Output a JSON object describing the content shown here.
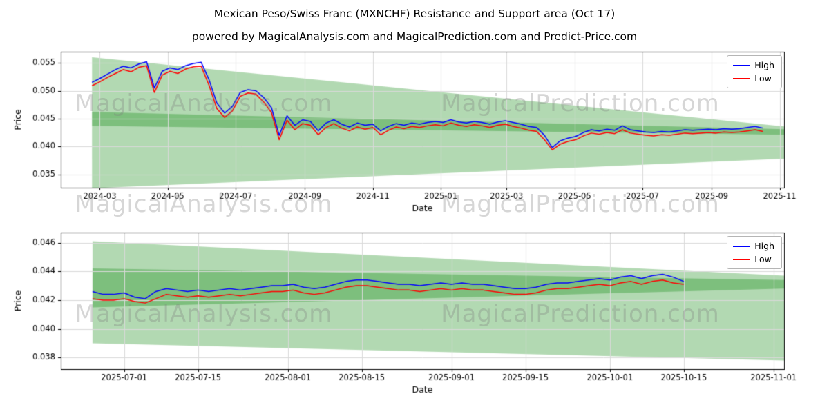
{
  "figure": {
    "title": "Mexican Peso/Swiss Franc (MXNCHF) Resistance and Support area (Oct 17)",
    "subtitle": "powered by MagicalAnalysis.com and MagicalPrediction.com and Predict-Price.com"
  },
  "watermarks": {
    "analysis": "MagicalAnalysis.com",
    "prediction": "MagicalPrediction.com"
  },
  "legend": {
    "items": [
      {
        "label": "High",
        "color": "#0000ff"
      },
      {
        "label": "Low",
        "color": "#ff0000"
      }
    ]
  },
  "colors": {
    "high_line": "#0000ff",
    "low_line": "#ff0000",
    "band_green": "#008000",
    "background": "#ffffff"
  },
  "chart_data": [
    {
      "type": "line",
      "xlabel": "Date",
      "ylabel": "Price",
      "grid": true,
      "legend_position": "upper right",
      "x_unit": "days since 2024-02-23",
      "xlim": [
        -28,
        621
      ],
      "ylim": [
        0.0326,
        0.057
      ],
      "yticks": [
        0.035,
        0.04,
        0.045,
        0.05,
        0.055
      ],
      "ytick_labels": [
        "0.035",
        "0.040",
        "0.045",
        "0.050",
        "0.055"
      ],
      "xticks": [
        {
          "pos": 7,
          "label": "2024-03"
        },
        {
          "pos": 68,
          "label": "2024-05"
        },
        {
          "pos": 129,
          "label": "2024-07"
        },
        {
          "pos": 191,
          "label": "2024-09"
        },
        {
          "pos": 252,
          "label": "2024-11"
        },
        {
          "pos": 313,
          "label": "2025-01"
        },
        {
          "pos": 372,
          "label": "2025-03"
        },
        {
          "pos": 433,
          "label": "2025-05"
        },
        {
          "pos": 494,
          "label": "2025-07"
        },
        {
          "pos": 556,
          "label": "2025-09"
        },
        {
          "pos": 617,
          "label": "2025-11"
        }
      ],
      "series": [
        {
          "name": "High",
          "color": "#0000ff",
          "x0": 0,
          "dx": 7,
          "value_scale": 0.0001,
          "values": [
            515,
            522,
            530,
            538,
            544,
            541,
            548,
            552,
            505,
            535,
            541,
            538,
            545,
            549,
            551,
            520,
            478,
            460,
            472,
            497,
            502,
            500,
            488,
            470,
            420,
            455,
            438,
            448,
            445,
            428,
            442,
            448,
            440,
            435,
            442,
            438,
            440,
            428,
            436,
            441,
            438,
            442,
            440,
            443,
            445,
            443,
            448,
            444,
            442,
            445,
            443,
            440,
            444,
            446,
            443,
            440,
            436,
            434,
            420,
            398,
            410,
            415,
            418,
            425,
            430,
            428,
            431,
            429,
            437,
            430,
            428,
            426,
            425,
            427,
            426,
            428,
            430,
            429,
            430,
            431,
            430,
            432,
            431,
            432,
            434,
            436,
            433
          ]
        },
        {
          "name": "Low",
          "color": "#ff0000",
          "x0": 0,
          "dx": 7,
          "value_scale": 0.0001,
          "values": [
            509,
            516,
            524,
            531,
            538,
            534,
            542,
            545,
            497,
            528,
            535,
            531,
            539,
            543,
            544,
            510,
            468,
            452,
            464,
            490,
            496,
            494,
            480,
            461,
            412,
            447,
            430,
            441,
            438,
            421,
            434,
            441,
            433,
            428,
            435,
            431,
            434,
            421,
            429,
            435,
            432,
            436,
            434,
            437,
            439,
            437,
            442,
            438,
            436,
            439,
            437,
            434,
            438,
            440,
            436,
            433,
            429,
            427,
            412,
            394,
            404,
            409,
            412,
            419,
            424,
            422,
            425,
            423,
            430,
            424,
            422,
            420,
            419,
            421,
            420,
            422,
            424,
            423,
            424,
            425,
            424,
            426,
            425,
            426,
            428,
            430,
            427
          ]
        }
      ],
      "bands": [
        {
          "name": "resistance-area",
          "color": "#008000",
          "alpha": 0.3,
          "x": [
            0,
            621
          ],
          "top": [
            0.056,
            0.0436
          ],
          "bottom": [
            0.0437,
            0.0421
          ]
        },
        {
          "name": "support-area",
          "color": "#008000",
          "alpha": 0.3,
          "x": [
            0,
            621
          ],
          "top": [
            0.0462,
            0.0431
          ],
          "bottom": [
            0.0325,
            0.0378
          ]
        }
      ]
    },
    {
      "type": "line",
      "xlabel": "Date",
      "ylabel": "Price",
      "grid": true,
      "legend_position": "upper right",
      "x_unit": "days since 2025-06-25",
      "xlim": [
        -6,
        131
      ],
      "ylim": [
        0.0372,
        0.0467
      ],
      "yticks": [
        0.038,
        0.04,
        0.042,
        0.044,
        0.046
      ],
      "ytick_labels": [
        "0.038",
        "0.040",
        "0.042",
        "0.044",
        "0.046"
      ],
      "xticks": [
        {
          "pos": 6,
          "label": "2025-07-01"
        },
        {
          "pos": 20,
          "label": "2025-07-15"
        },
        {
          "pos": 37,
          "label": "2025-08-01"
        },
        {
          "pos": 51,
          "label": "2025-08-15"
        },
        {
          "pos": 68,
          "label": "2025-09-01"
        },
        {
          "pos": 82,
          "label": "2025-09-15"
        },
        {
          "pos": 98,
          "label": "2025-10-01"
        },
        {
          "pos": 112,
          "label": "2025-10-15"
        },
        {
          "pos": 129,
          "label": "2025-11-01"
        }
      ],
      "series": [
        {
          "name": "High",
          "color": "#0000ff",
          "x0": 0,
          "dx": 2,
          "value_scale": 0.0001,
          "values": [
            426,
            424,
            424,
            425,
            422,
            421,
            426,
            428,
            427,
            426,
            427,
            426,
            427,
            428,
            427,
            428,
            429,
            430,
            430,
            431,
            429,
            428,
            429,
            431,
            433,
            434,
            434,
            433,
            432,
            431,
            431,
            430,
            431,
            432,
            431,
            432,
            431,
            431,
            430,
            429,
            428,
            428,
            429,
            431,
            432,
            432,
            433,
            434,
            435,
            434,
            436,
            437,
            435,
            437,
            438,
            436,
            433
          ]
        },
        {
          "name": "Low",
          "color": "#ff0000",
          "x0": 0,
          "dx": 2,
          "value_scale": 0.0001,
          "values": [
            421,
            420,
            420,
            421,
            419,
            418,
            421,
            424,
            423,
            422,
            423,
            422,
            423,
            424,
            423,
            424,
            425,
            426,
            426,
            427,
            425,
            424,
            425,
            427,
            429,
            430,
            430,
            429,
            428,
            427,
            427,
            426,
            427,
            428,
            427,
            428,
            427,
            427,
            426,
            425,
            424,
            424,
            425,
            427,
            428,
            428,
            429,
            430,
            431,
            430,
            432,
            433,
            431,
            433,
            434,
            432,
            431
          ]
        }
      ],
      "bands": [
        {
          "name": "resistance-area",
          "color": "#008000",
          "alpha": 0.3,
          "x": [
            0,
            131
          ],
          "top": [
            0.0461,
            0.0437
          ],
          "bottom": [
            0.0415,
            0.0428
          ]
        },
        {
          "name": "support-area",
          "color": "#008000",
          "alpha": 0.3,
          "x": [
            0,
            131
          ],
          "top": [
            0.0442,
            0.0434
          ],
          "bottom": [
            0.039,
            0.0378
          ]
        }
      ]
    }
  ]
}
